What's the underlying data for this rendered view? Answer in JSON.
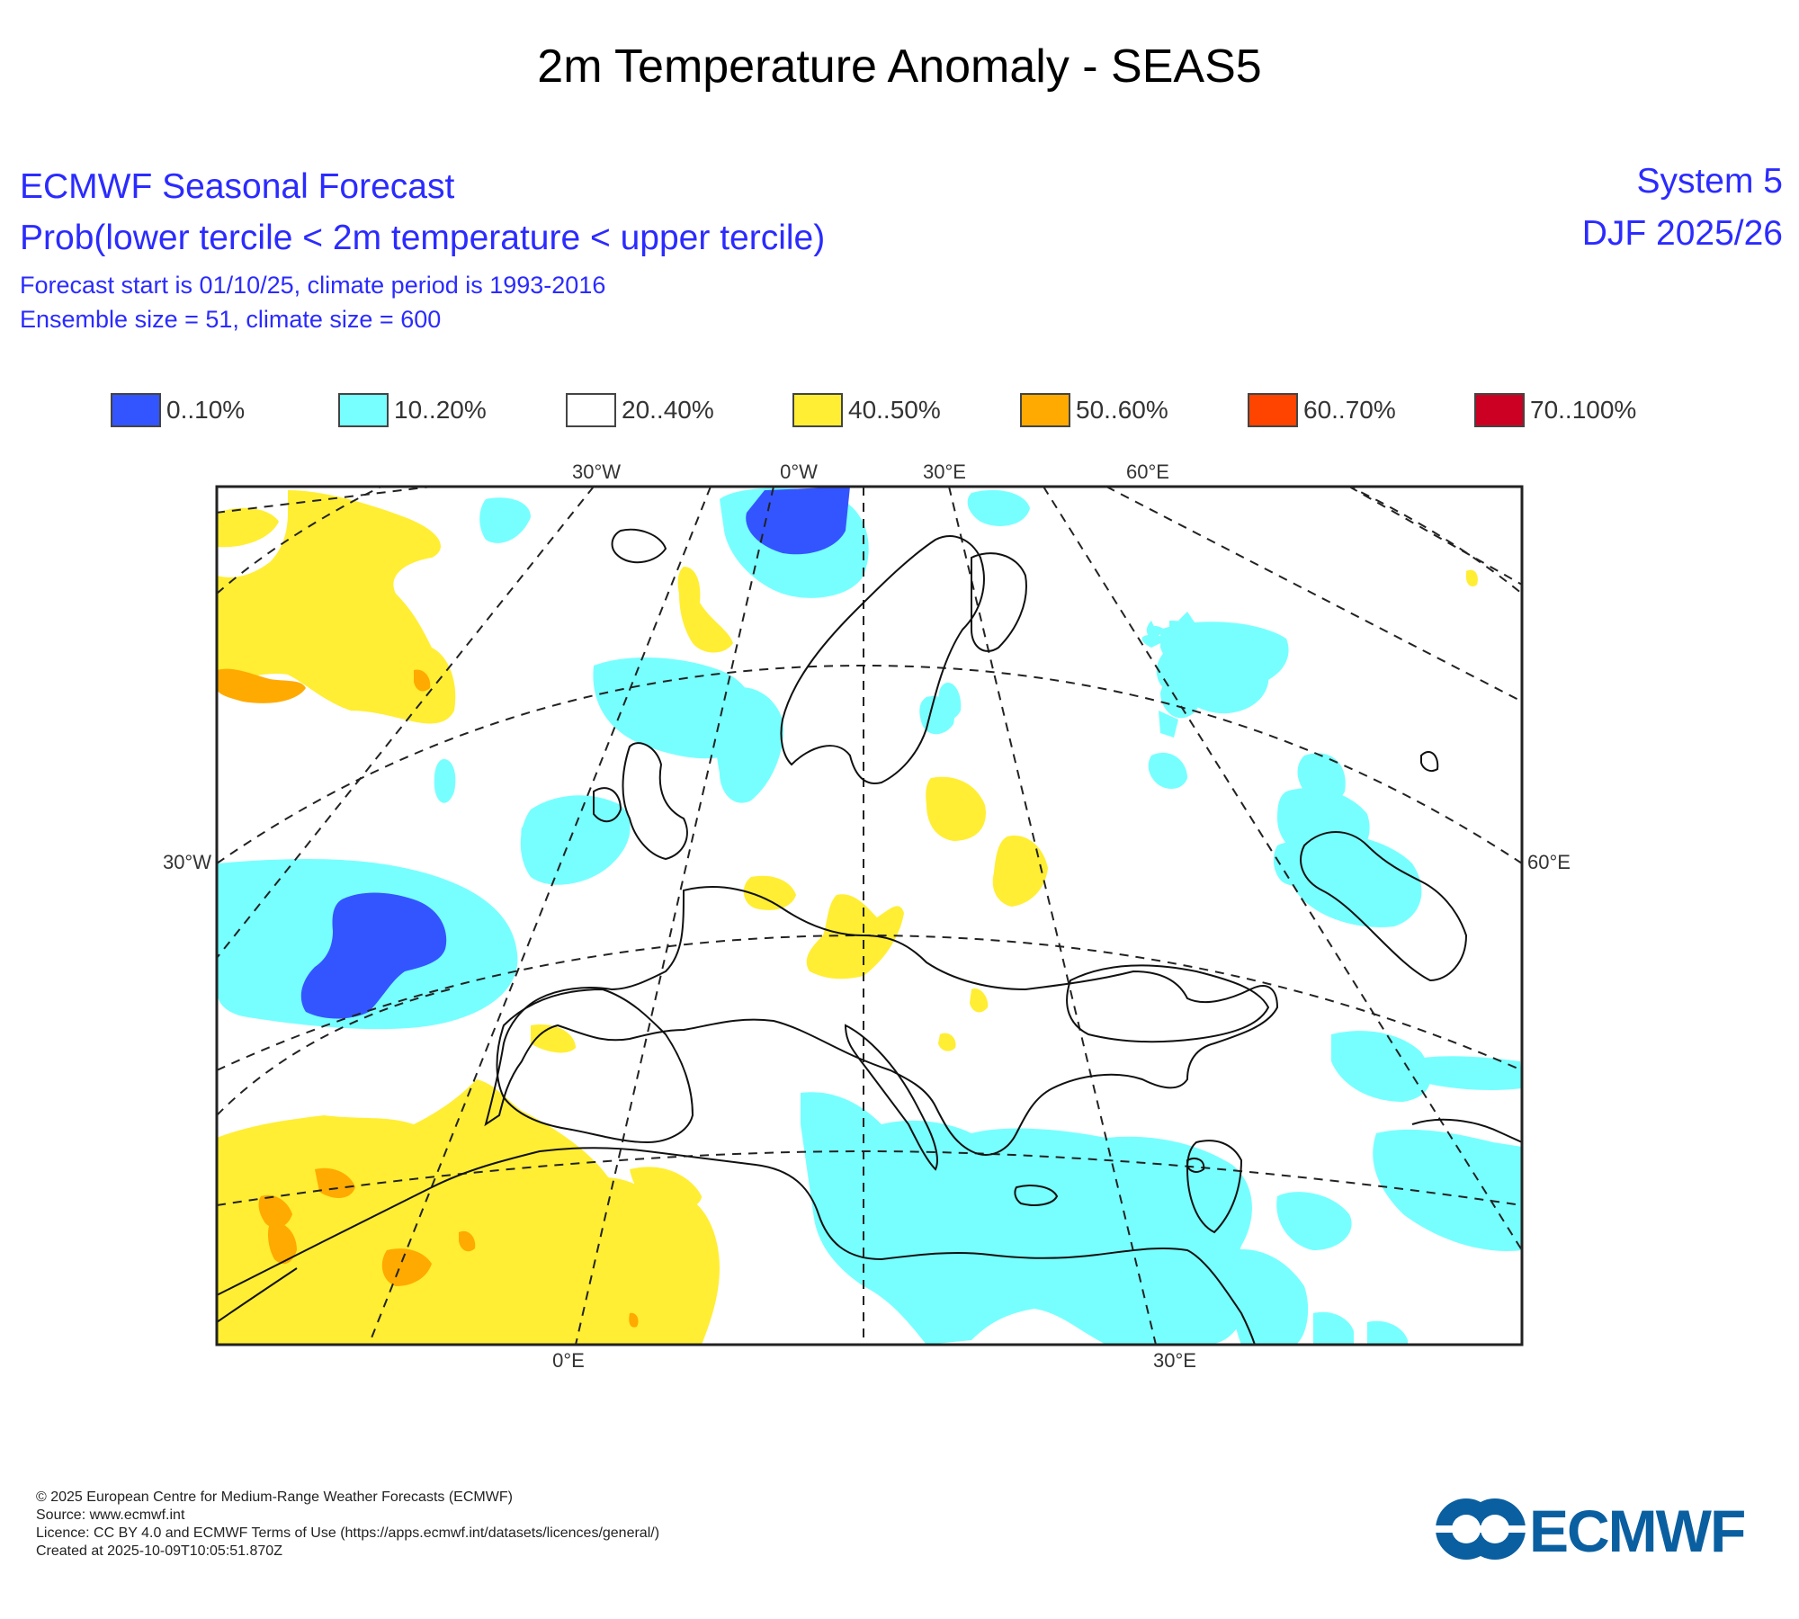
{
  "title": "2m Temperature Anomaly - SEAS5",
  "header": {
    "org": "ECMWF Seasonal Forecast",
    "quantity": "Prob(lower tercile < 2m temperature < upper tercile)",
    "forecast_start": "Forecast start is 01/10/25, climate period is 1993-2016",
    "ensemble": "Ensemble size = 51, climate size = 600",
    "system": "System 5",
    "season": "DJF 2025/26"
  },
  "legend": {
    "items": [
      {
        "label": "0..10%",
        "color": "#3355ff"
      },
      {
        "label": "10..20%",
        "color": "#77ffff"
      },
      {
        "label": "20..40%",
        "color": "#ffffff"
      },
      {
        "label": "40..50%",
        "color": "#ffee33"
      },
      {
        "label": "50..60%",
        "color": "#ffaa00"
      },
      {
        "label": "60..70%",
        "color": "#ff4400"
      },
      {
        "label": "70..100%",
        "color": "#cc0022"
      }
    ]
  },
  "map": {
    "top_labels": [
      "30°W",
      "0°W",
      "30°E",
      "60°E"
    ],
    "left_label": "30°W",
    "right_label": "60°E",
    "bottom_labels": [
      "0°E",
      "30°E"
    ]
  },
  "footer": {
    "copyright": "© 2025 European Centre for Medium-Range Weather Forecasts (ECMWF)",
    "source": "Source: www.ecmwf.int",
    "licence": "Licence: CC BY 4.0 and ECMWF Terms of Use (https://apps.ecmwf.int/datasets/licences/general/)",
    "created": "Created at 2025-10-09T10:05:51.870Z"
  },
  "logo": {
    "text": "ECMWF",
    "color": "#0a5fa0"
  }
}
